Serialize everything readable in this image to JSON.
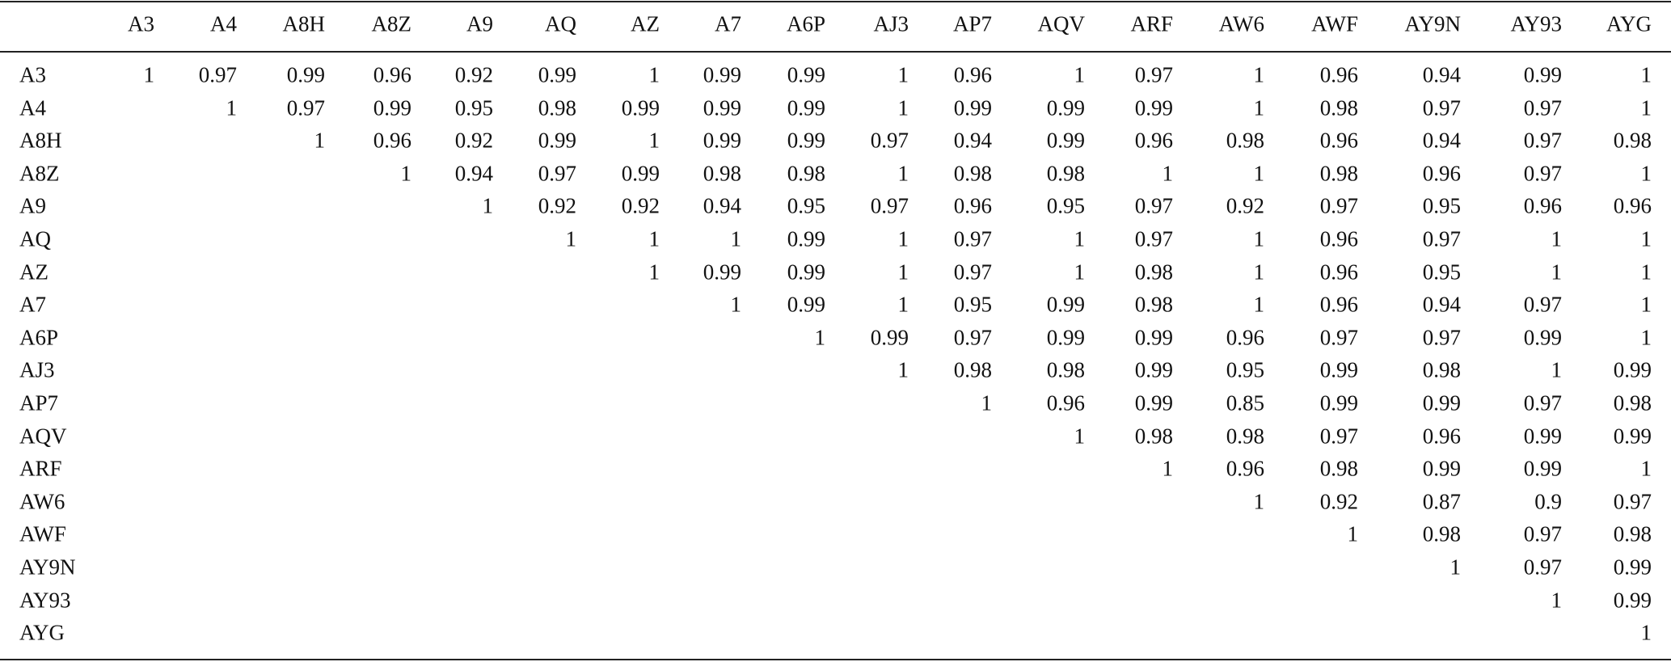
{
  "table": {
    "header": [
      "A3",
      "A4",
      "A8H",
      "A8Z",
      "A9",
      "AQ",
      "AZ",
      "A7",
      "A6P",
      "AJ3",
      "AP7",
      "AQV",
      "ARF",
      "AW6",
      "AWF",
      "AY9N",
      "AY93",
      "AYG"
    ],
    "rows": [
      {
        "label": "A3",
        "values": [
          1,
          0.97,
          0.99,
          0.96,
          0.92,
          0.99,
          1,
          0.99,
          0.99,
          1,
          0.96,
          1,
          0.97,
          1,
          0.96,
          0.94,
          0.99,
          1
        ]
      },
      {
        "label": "A4",
        "values": [
          null,
          1,
          0.97,
          0.99,
          0.95,
          0.98,
          0.99,
          0.99,
          0.99,
          1,
          0.99,
          0.99,
          0.99,
          1,
          0.98,
          0.97,
          0.97,
          1
        ]
      },
      {
        "label": "A8H",
        "values": [
          null,
          null,
          1,
          0.96,
          0.92,
          0.99,
          1,
          0.99,
          0.99,
          0.97,
          0.94,
          0.99,
          0.96,
          0.98,
          0.96,
          0.94,
          0.97,
          0.98
        ]
      },
      {
        "label": "A8Z",
        "values": [
          null,
          null,
          null,
          1,
          0.94,
          0.97,
          0.99,
          0.98,
          0.98,
          1,
          0.98,
          0.98,
          1,
          1,
          0.98,
          0.96,
          0.97,
          1
        ]
      },
      {
        "label": "A9",
        "values": [
          null,
          null,
          null,
          null,
          1,
          0.92,
          0.92,
          0.94,
          0.95,
          0.97,
          0.96,
          0.95,
          0.97,
          0.92,
          0.97,
          0.95,
          0.96,
          0.96
        ]
      },
      {
        "label": "AQ",
        "values": [
          null,
          null,
          null,
          null,
          null,
          1,
          1,
          1,
          0.99,
          1,
          0.97,
          1,
          0.97,
          1,
          0.96,
          0.97,
          1,
          1
        ]
      },
      {
        "label": "AZ",
        "values": [
          null,
          null,
          null,
          null,
          null,
          null,
          1,
          0.99,
          0.99,
          1,
          0.97,
          1,
          0.98,
          1,
          0.96,
          0.95,
          1,
          1
        ]
      },
      {
        "label": "A7",
        "values": [
          null,
          null,
          null,
          null,
          null,
          null,
          null,
          1,
          0.99,
          1,
          0.95,
          0.99,
          0.98,
          1,
          0.96,
          0.94,
          0.97,
          1
        ]
      },
      {
        "label": "A6P",
        "values": [
          null,
          null,
          null,
          null,
          null,
          null,
          null,
          null,
          1,
          0.99,
          0.97,
          0.99,
          0.99,
          0.96,
          0.97,
          0.97,
          0.99,
          1
        ]
      },
      {
        "label": "AJ3",
        "values": [
          null,
          null,
          null,
          null,
          null,
          null,
          null,
          null,
          null,
          1,
          0.98,
          0.98,
          0.99,
          0.95,
          0.99,
          0.98,
          1,
          0.99
        ]
      },
      {
        "label": "AP7",
        "values": [
          null,
          null,
          null,
          null,
          null,
          null,
          null,
          null,
          null,
          null,
          1,
          0.96,
          0.99,
          0.85,
          0.99,
          0.99,
          0.97,
          0.98
        ]
      },
      {
        "label": "AQV",
        "values": [
          null,
          null,
          null,
          null,
          null,
          null,
          null,
          null,
          null,
          null,
          null,
          1,
          0.98,
          0.98,
          0.97,
          0.96,
          0.99,
          0.99
        ]
      },
      {
        "label": "ARF",
        "values": [
          null,
          null,
          null,
          null,
          null,
          null,
          null,
          null,
          null,
          null,
          null,
          null,
          1,
          0.96,
          0.98,
          0.99,
          0.99,
          1
        ]
      },
      {
        "label": "AW6",
        "values": [
          null,
          null,
          null,
          null,
          null,
          null,
          null,
          null,
          null,
          null,
          null,
          null,
          null,
          1,
          0.92,
          0.87,
          0.9,
          0.97
        ]
      },
      {
        "label": "AWF",
        "values": [
          null,
          null,
          null,
          null,
          null,
          null,
          null,
          null,
          null,
          null,
          null,
          null,
          null,
          null,
          1,
          0.98,
          0.97,
          0.98
        ]
      },
      {
        "label": "AY9N",
        "values": [
          null,
          null,
          null,
          null,
          null,
          null,
          null,
          null,
          null,
          null,
          null,
          null,
          null,
          null,
          null,
          1,
          0.97,
          0.99
        ]
      },
      {
        "label": "AY93",
        "values": [
          null,
          null,
          null,
          null,
          null,
          null,
          null,
          null,
          null,
          null,
          null,
          null,
          null,
          null,
          null,
          null,
          1,
          0.99
        ]
      },
      {
        "label": "AYG",
        "values": [
          null,
          null,
          null,
          null,
          null,
          null,
          null,
          null,
          null,
          null,
          null,
          null,
          null,
          null,
          null,
          null,
          null,
          1
        ]
      }
    ]
  }
}
